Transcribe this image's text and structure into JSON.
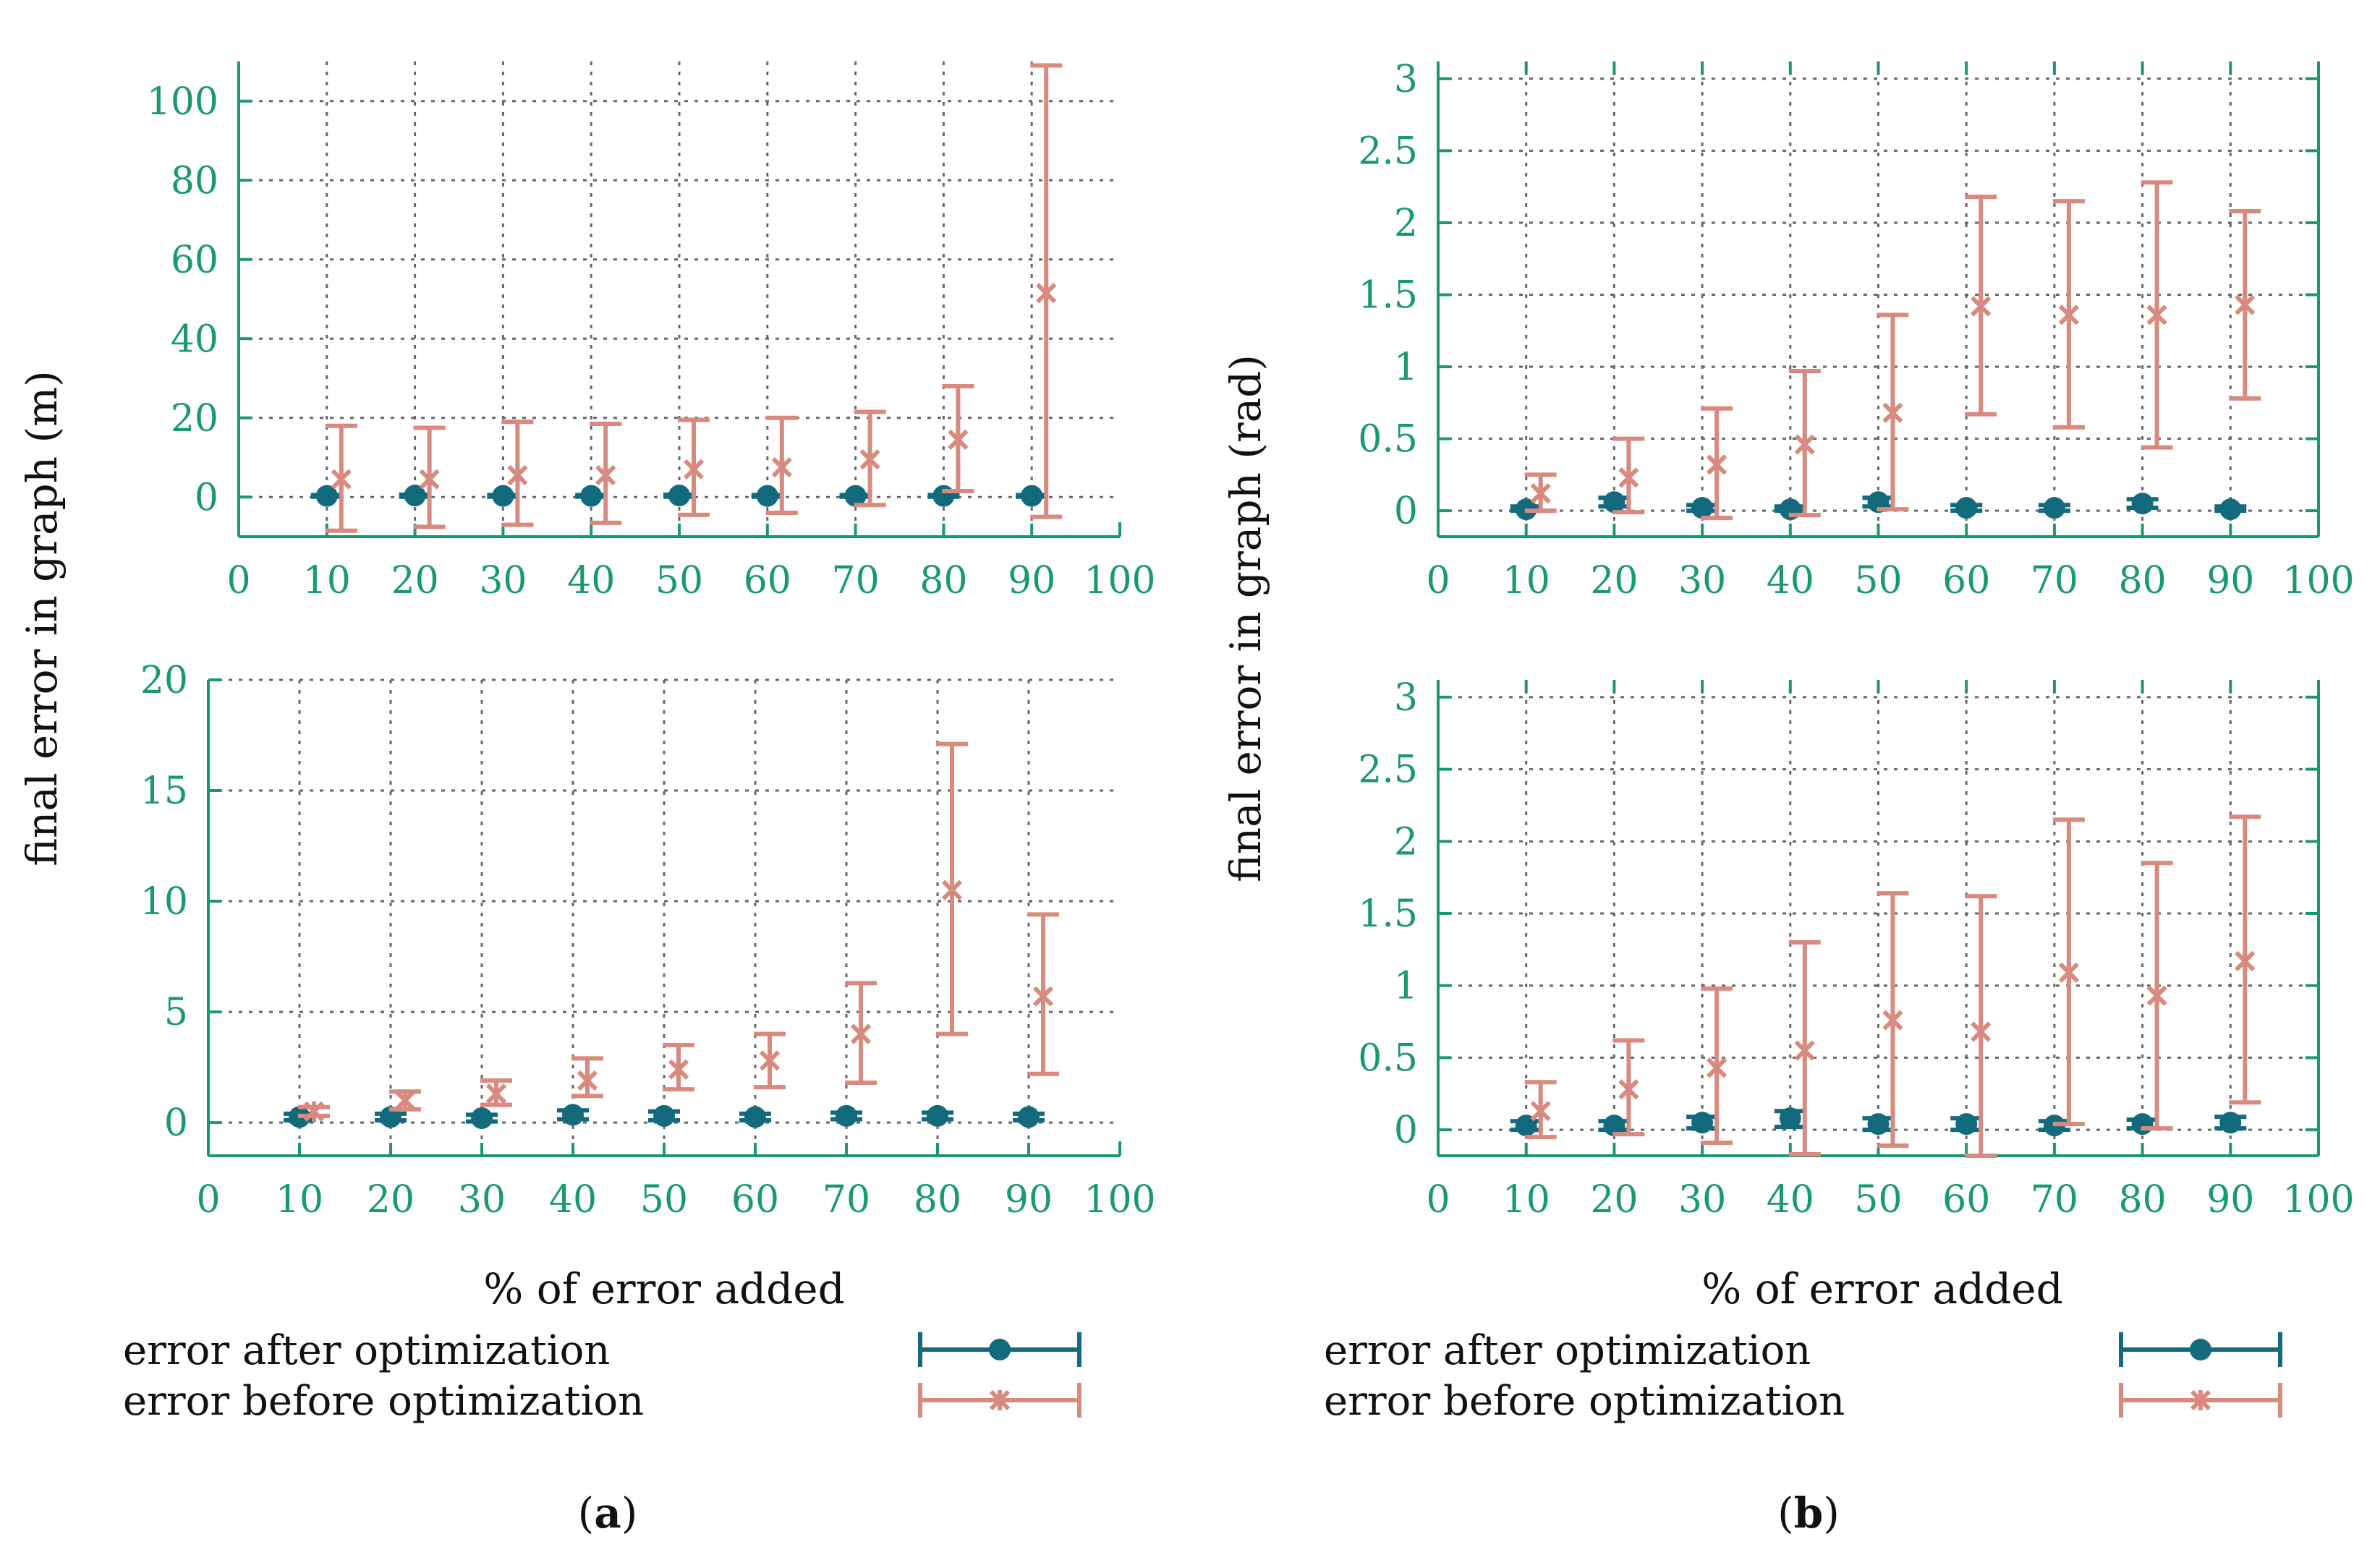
{
  "colors": {
    "after": "#136a7d",
    "before": "#d98a7e",
    "axis": "#1a9a6c",
    "grid": "#666666",
    "text": "#111111"
  },
  "series_names": [
    "error after optimization",
    "error before optimization"
  ],
  "captions": {
    "a": {
      "open": "(",
      "letter": "a",
      "close": ")"
    },
    "b": {
      "open": "(",
      "letter": "b",
      "close": ")"
    }
  },
  "axis_labels": {
    "x": "% of error added",
    "y_a": "final error in graph (m)",
    "y_b": "final error in graph (rad)"
  },
  "chart_data": [
    {
      "id": "a-top",
      "type": "scatter",
      "title": "",
      "xlabel": "",
      "ylabel": "final error in graph (m)",
      "xlim": [
        0,
        100
      ],
      "ylim": [
        -10,
        110
      ],
      "x_ticks": [
        0,
        10,
        20,
        30,
        40,
        50,
        60,
        70,
        80,
        90,
        100
      ],
      "y_ticks": [
        0,
        20,
        40,
        60,
        80,
        100
      ],
      "grid": true,
      "series": [
        {
          "name": "error after optimization",
          "x": [
            10,
            20,
            30,
            40,
            50,
            60,
            70,
            80,
            90
          ],
          "values": [
            0.3,
            0.4,
            0.3,
            0.3,
            0.4,
            0.3,
            0.3,
            0.3,
            0.3
          ],
          "err_low": [
            0.1,
            0.1,
            0.1,
            0.1,
            0.1,
            0.1,
            0.1,
            0.1,
            0.1
          ],
          "err_high": [
            0.5,
            0.6,
            0.5,
            0.5,
            0.6,
            0.5,
            0.5,
            0.5,
            0.5
          ]
        },
        {
          "name": "error before optimization",
          "x": [
            10,
            20,
            30,
            40,
            50,
            60,
            70,
            80,
            90
          ],
          "values": [
            4.5,
            4.5,
            5.5,
            5.5,
            7,
            7.5,
            9.5,
            14.5,
            51.5
          ],
          "err_low": [
            -8.5,
            -7.5,
            -7,
            -6.5,
            -4.5,
            -4,
            -2,
            1.5,
            -5
          ],
          "err_high": [
            18,
            17.5,
            19,
            18.5,
            19.5,
            20,
            21.5,
            28,
            109
          ]
        }
      ]
    },
    {
      "id": "a-bottom",
      "type": "scatter",
      "title": "",
      "xlabel": "% of error added",
      "ylabel": "final error in graph (m)",
      "xlim": [
        0,
        100
      ],
      "ylim": [
        -1.5,
        20
      ],
      "x_ticks": [
        0,
        10,
        20,
        30,
        40,
        50,
        60,
        70,
        80,
        90,
        100
      ],
      "y_ticks": [
        0,
        5,
        10,
        15,
        20
      ],
      "grid": true,
      "series": [
        {
          "name": "error after optimization",
          "x": [
            10,
            20,
            30,
            40,
            50,
            60,
            70,
            80,
            90
          ],
          "values": [
            0.25,
            0.25,
            0.2,
            0.35,
            0.3,
            0.25,
            0.3,
            0.3,
            0.25
          ],
          "err_low": [
            0.1,
            0.1,
            0.05,
            0.15,
            0.1,
            0.1,
            0.15,
            0.15,
            0.1
          ],
          "err_high": [
            0.4,
            0.4,
            0.35,
            0.55,
            0.5,
            0.4,
            0.45,
            0.45,
            0.4
          ]
        },
        {
          "name": "error before optimization",
          "x": [
            10,
            20,
            30,
            40,
            50,
            60,
            70,
            80,
            90
          ],
          "values": [
            0.5,
            1,
            1.3,
            1.9,
            2.4,
            2.8,
            4,
            10.5,
            5.7
          ],
          "err_low": [
            0.3,
            0.6,
            0.8,
            1.2,
            1.5,
            1.6,
            1.8,
            4,
            2.2
          ],
          "err_high": [
            0.7,
            1.4,
            1.9,
            2.9,
            3.5,
            4,
            6.3,
            17.1,
            9.4
          ]
        }
      ]
    },
    {
      "id": "b-top",
      "type": "scatter",
      "title": "",
      "xlabel": "",
      "ylabel": "final error in graph (rad)",
      "xlim": [
        0,
        100
      ],
      "ylim": [
        -0.18,
        3.12
      ],
      "x_ticks": [
        0,
        10,
        20,
        30,
        40,
        50,
        60,
        70,
        80,
        90,
        100
      ],
      "y_ticks": [
        0,
        0.5,
        1,
        1.5,
        2,
        2.5,
        3
      ],
      "y_tick_labels": [
        "0",
        "0.5",
        "1",
        "1.5",
        "2",
        "2.5",
        "3"
      ],
      "grid": true,
      "series": [
        {
          "name": "error after optimization",
          "x": [
            10,
            20,
            30,
            40,
            50,
            60,
            70,
            80,
            90
          ],
          "values": [
            0.01,
            0.06,
            0.02,
            0.01,
            0.06,
            0.02,
            0.02,
            0.05,
            0.01
          ],
          "err_low": [
            0,
            0.03,
            0,
            0,
            0.03,
            0,
            0,
            0.02,
            0
          ],
          "err_high": [
            0.03,
            0.09,
            0.04,
            0.03,
            0.09,
            0.04,
            0.04,
            0.08,
            0.03
          ]
        },
        {
          "name": "error before optimization",
          "x": [
            10,
            20,
            30,
            40,
            50,
            60,
            70,
            80,
            90
          ],
          "values": [
            0.12,
            0.23,
            0.32,
            0.46,
            0.68,
            1.42,
            1.36,
            1.36,
            1.43
          ],
          "err_low": [
            0,
            -0.01,
            -0.05,
            -0.03,
            0.01,
            0.67,
            0.58,
            0.44,
            0.78
          ],
          "err_high": [
            0.25,
            0.5,
            0.71,
            0.97,
            1.36,
            2.18,
            2.15,
            2.28,
            2.08
          ]
        }
      ]
    },
    {
      "id": "b-bottom",
      "type": "scatter",
      "title": "",
      "xlabel": "% of error added",
      "ylabel": "final error in graph (rad)",
      "xlim": [
        0,
        100
      ],
      "ylim": [
        -0.18,
        3.12
      ],
      "x_ticks": [
        0,
        10,
        20,
        30,
        40,
        50,
        60,
        70,
        80,
        90,
        100
      ],
      "y_ticks": [
        0,
        0.5,
        1,
        1.5,
        2,
        2.5,
        3
      ],
      "y_tick_labels": [
        "0",
        "0.5",
        "1",
        "1.5",
        "2",
        "2.5",
        "3"
      ],
      "grid": true,
      "series": [
        {
          "name": "error after optimization",
          "x": [
            10,
            20,
            30,
            40,
            50,
            60,
            70,
            80,
            90
          ],
          "values": [
            0.03,
            0.03,
            0.05,
            0.08,
            0.04,
            0.04,
            0.03,
            0.04,
            0.05
          ],
          "err_low": [
            0,
            0,
            0.01,
            0.02,
            0,
            0,
            0,
            0.01,
            0.01
          ],
          "err_high": [
            0.06,
            0.06,
            0.09,
            0.13,
            0.08,
            0.08,
            0.06,
            0.07,
            0.09
          ]
        },
        {
          "name": "error before optimization",
          "x": [
            10,
            20,
            30,
            40,
            50,
            60,
            70,
            80,
            90
          ],
          "values": [
            0.13,
            0.28,
            0.43,
            0.55,
            0.76,
            0.68,
            1.09,
            0.93,
            1.17
          ],
          "err_low": [
            -0.05,
            -0.03,
            -0.09,
            -0.17,
            -0.11,
            -0.18,
            0.04,
            0.01,
            0.19
          ],
          "err_high": [
            0.33,
            0.62,
            0.98,
            1.3,
            1.64,
            1.62,
            2.15,
            1.85,
            2.17
          ]
        }
      ]
    }
  ]
}
